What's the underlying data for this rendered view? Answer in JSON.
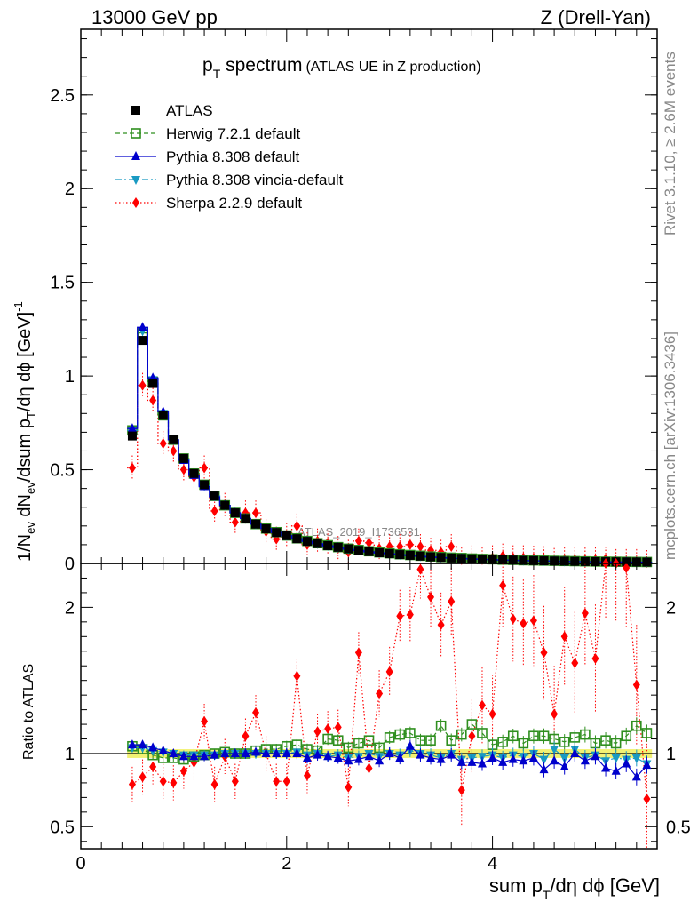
{
  "header": {
    "energy": "13000 GeV pp",
    "process": "Z (Drell-Yan)"
  },
  "side_labels": {
    "rivet": "Rivet 3.1.10, ≥ 2.6M events",
    "mcplots": "mcplots.cern.ch [arXiv:1306.3436]"
  },
  "watermark": "ATLAS_2019_I1736531",
  "chart_data": [
    {
      "type": "line",
      "panel": "main",
      "title_main": "p",
      "title_sub": "T",
      "title_rest": " spectrum",
      "title_tag": "(ATLAS UE in Z production)",
      "ylabel": "1/N_ev dN_ev/dsum p_T/dη dϕ [GeV]^-1",
      "xlim": [
        0,
        5.6
      ],
      "ylim": [
        0,
        2.85
      ],
      "y_ticks": [
        0,
        0.5,
        1,
        1.5,
        2,
        2.5
      ],
      "y_tick_labels": [
        "0",
        "0.5",
        "1",
        "1.5",
        "2",
        "2.5"
      ],
      "x": [
        0.5,
        0.6,
        0.7,
        0.8,
        0.9,
        1.0,
        1.1,
        1.2,
        1.3,
        1.4,
        1.5,
        1.6,
        1.7,
        1.8,
        1.9,
        2.0,
        2.1,
        2.2,
        2.3,
        2.4,
        2.5,
        2.6,
        2.7,
        2.8,
        2.9,
        3.0,
        3.1,
        3.2,
        3.3,
        3.4,
        3.5,
        3.6,
        3.7,
        3.8,
        3.9,
        4.0,
        4.1,
        4.2,
        4.3,
        4.4,
        4.5,
        4.6,
        4.7,
        4.8,
        4.9,
        5.0,
        5.1,
        5.2,
        5.3,
        5.4,
        5.5
      ],
      "series": [
        {
          "name": "ATLAS",
          "color": "#000000",
          "values": [
            0.68,
            1.19,
            0.96,
            0.79,
            0.66,
            0.56,
            0.48,
            0.42,
            0.36,
            0.31,
            0.27,
            0.24,
            0.21,
            0.185,
            0.165,
            0.148,
            0.132,
            0.118,
            0.106,
            0.095,
            0.086,
            0.078,
            0.07,
            0.063,
            0.057,
            0.052,
            0.047,
            0.043,
            0.039,
            0.035,
            0.032,
            0.029,
            0.027,
            0.025,
            0.023,
            0.021,
            0.019,
            0.018,
            0.016,
            0.015,
            0.014,
            0.013,
            0.012,
            0.011,
            0.01,
            0.0095,
            0.009,
            0.0085,
            0.008,
            0.0075,
            0.007
          ]
        },
        {
          "name": "Herwig 7.2.1 default",
          "color": "#2f8f1f",
          "values": [
            0.71,
            1.23,
            0.97,
            0.79,
            0.66,
            0.56,
            0.48,
            0.42,
            0.36,
            0.31,
            0.27,
            0.24,
            0.21,
            0.186,
            0.167,
            0.149,
            0.134,
            0.12,
            0.108,
            0.097,
            0.087,
            0.079,
            0.072,
            0.065,
            0.059,
            0.054,
            0.049,
            0.045,
            0.041,
            0.037,
            0.034,
            0.031,
            0.029,
            0.026,
            0.024,
            0.022,
            0.02,
            0.019,
            0.017,
            0.016,
            0.015,
            0.014,
            0.013,
            0.012,
            0.011,
            0.01,
            0.0095,
            0.009,
            0.0085,
            0.008,
            0.0075
          ]
        },
        {
          "name": "Pythia 8.308 default",
          "color": "#0000cc",
          "values": [
            0.72,
            1.26,
            0.99,
            0.81,
            0.66,
            0.55,
            0.47,
            0.41,
            0.355,
            0.31,
            0.27,
            0.24,
            0.21,
            0.186,
            0.165,
            0.148,
            0.132,
            0.118,
            0.105,
            0.094,
            0.085,
            0.076,
            0.069,
            0.062,
            0.056,
            0.051,
            0.046,
            0.042,
            0.038,
            0.034,
            0.031,
            0.028,
            0.026,
            0.024,
            0.022,
            0.02,
            0.018,
            0.017,
            0.015,
            0.014,
            0.013,
            0.012,
            0.011,
            0.01,
            0.0095,
            0.009,
            0.0085,
            0.008,
            0.0075,
            0.007,
            0.0065
          ]
        },
        {
          "name": "Pythia 8.308 vincia-default",
          "color": "#1a9ac2",
          "values": [
            0.71,
            1.24,
            0.98,
            0.8,
            0.66,
            0.56,
            0.48,
            0.415,
            0.36,
            0.31,
            0.27,
            0.24,
            0.21,
            0.186,
            0.166,
            0.148,
            0.132,
            0.118,
            0.106,
            0.095,
            0.085,
            0.077,
            0.07,
            0.063,
            0.057,
            0.052,
            0.047,
            0.043,
            0.039,
            0.035,
            0.032,
            0.029,
            0.027,
            0.025,
            0.023,
            0.021,
            0.019,
            0.018,
            0.016,
            0.015,
            0.014,
            0.013,
            0.012,
            0.011,
            0.01,
            0.0095,
            0.009,
            0.0085,
            0.008,
            0.0075,
            0.007
          ]
        },
        {
          "name": "Sherpa 2.2.9 default",
          "color": "#ff0000",
          "values": [
            0.51,
            0.95,
            0.87,
            0.64,
            0.6,
            0.5,
            0.46,
            0.51,
            0.28,
            0.31,
            0.22,
            0.27,
            0.27,
            0.17,
            0.13,
            0.15,
            0.2,
            0.1,
            0.12,
            0.11,
            0.08,
            0.06,
            0.12,
            0.11,
            0.08,
            0.09,
            0.09,
            0.1,
            0.09,
            0.07,
            0.06,
            0.09,
            0.02,
            0.03,
            0.02,
            0.03,
            0.04,
            0.03,
            0.03,
            0.028,
            0.025,
            0.016,
            0.02,
            0.021,
            0.019,
            0.02,
            0.024,
            0.01,
            0.01,
            0.01,
            0.005
          ]
        }
      ]
    },
    {
      "type": "line",
      "panel": "ratio",
      "ylabel": "Ratio to ATLAS",
      "xlabel": "sum p_T/dη dϕ [GeV]",
      "xlim": [
        0,
        5.6
      ],
      "ylim": [
        0.35,
        2.3
      ],
      "x_ticks": [
        0,
        2,
        4
      ],
      "x_tick_labels": [
        "0",
        "2",
        "4"
      ],
      "y_ticks": [
        0.5,
        1,
        2
      ],
      "y_tick_labels": [
        "0.5",
        "1",
        "2"
      ],
      "band_halfwidth": 0.03,
      "x": [
        0.5,
        0.6,
        0.7,
        0.8,
        0.9,
        1.0,
        1.1,
        1.2,
        1.3,
        1.4,
        1.5,
        1.6,
        1.7,
        1.8,
        1.9,
        2.0,
        2.1,
        2.2,
        2.3,
        2.4,
        2.5,
        2.6,
        2.7,
        2.8,
        2.9,
        3.0,
        3.1,
        3.2,
        3.3,
        3.4,
        3.5,
        3.6,
        3.7,
        3.8,
        3.9,
        4.0,
        4.1,
        4.2,
        4.3,
        4.4,
        4.5,
        4.6,
        4.7,
        4.8,
        4.9,
        5.0,
        5.1,
        5.2,
        5.3,
        5.4,
        5.5
      ],
      "series": [
        {
          "name": "Herwig 7.2.1 default",
          "values": [
            1.05,
            1.03,
            0.99,
            0.97,
            0.97,
            0.96,
            0.98,
            0.99,
            1.0,
            1.01,
            1.0,
            1.0,
            1.02,
            1.03,
            1.03,
            1.05,
            1.06,
            1.03,
            1.02,
            1.1,
            1.09,
            1.04,
            1.07,
            1.09,
            1.04,
            1.11,
            1.13,
            1.14,
            1.09,
            1.09,
            1.19,
            1.09,
            1.13,
            1.2,
            1.14,
            1.06,
            1.08,
            1.12,
            1.07,
            1.12,
            1.12,
            1.1,
            1.08,
            1.11,
            1.13,
            1.07,
            1.09,
            1.07,
            1.12,
            1.19,
            1.14
          ]
        },
        {
          "name": "Pythia 8.308 default",
          "values": [
            1.06,
            1.06,
            1.04,
            1.02,
            1.0,
            0.98,
            0.98,
            0.98,
            0.99,
            1.0,
            1.0,
            1.0,
            1.01,
            1.0,
            1.0,
            1.0,
            1.0,
            0.97,
            0.99,
            0.98,
            0.97,
            0.95,
            0.96,
            0.98,
            0.95,
            1.0,
            0.97,
            1.05,
            0.99,
            0.97,
            0.96,
            0.99,
            0.94,
            0.94,
            0.93,
            0.97,
            0.94,
            0.96,
            0.95,
            0.97,
            0.89,
            0.95,
            0.91,
            1.0,
            0.95,
            0.98,
            0.9,
            0.88,
            0.93,
            0.84,
            0.92
          ]
        },
        {
          "name": "Pythia 8.308 vincia-default",
          "values": [
            1.04,
            1.04,
            1.02,
            1.01,
            1.0,
            0.99,
            0.99,
            0.99,
            0.99,
            1.0,
            1.0,
            1.0,
            1.0,
            1.0,
            1.0,
            1.0,
            1.01,
            0.99,
            1.0,
            0.98,
            0.99,
            0.97,
            0.98,
            1.0,
            0.98,
            1.0,
            0.99,
            1.02,
            1.0,
            0.99,
            0.97,
            1.0,
            0.96,
            0.97,
            0.98,
            0.99,
            0.97,
            0.99,
            0.98,
            1.0,
            0.96,
            1.03,
            0.97,
            1.03,
            0.97,
            0.99,
            0.95,
            0.97,
            0.96,
            0.97,
            0.93
          ]
        },
        {
          "name": "Sherpa 2.2.9 default",
          "values": [
            0.79,
            0.84,
            0.91,
            0.81,
            0.8,
            0.88,
            0.94,
            1.22,
            0.79,
            0.98,
            0.81,
            1.12,
            1.28,
            1.0,
            0.81,
            0.81,
            1.53,
            0.85,
            1.15,
            1.17,
            1.18,
            0.77,
            1.69,
            0.9,
            1.41,
            1.56,
            1.94,
            1.95,
            2.26,
            2.07,
            1.88,
            2.04,
            0.75,
            1.12,
            1.33,
            1.27,
            2.15,
            1.92,
            1.89,
            1.91,
            1.69,
            1.27,
            1.8,
            1.62,
            1.96,
            1.65,
            2.3,
            2.3,
            2.27,
            1.47,
            0.69
          ]
        }
      ]
    }
  ]
}
